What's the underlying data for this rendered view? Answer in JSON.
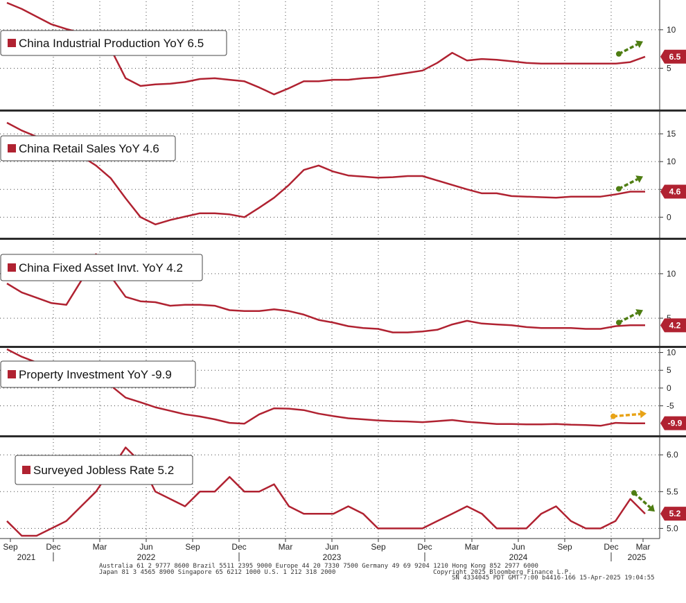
{
  "colors": {
    "series": "#b02231",
    "tag": "#b02231",
    "grid": "#444444",
    "separator": "#2b2b2b",
    "arrow_up": "#4e7d12",
    "arrow_flat": "#e8a317",
    "arrow_down": "#4e7d12"
  },
  "x_axis": {
    "month_ticks": [
      "Sep",
      "Dec",
      "Mar",
      "Jun",
      "Sep",
      "Dec",
      "Mar",
      "Jun",
      "Sep",
      "Dec",
      "Mar",
      "Jun",
      "Sep",
      "Dec",
      "Mar"
    ],
    "year_labels": [
      "2021",
      "2022",
      "2023",
      "2024",
      "2025"
    ]
  },
  "footer": {
    "line1": "Australia 61 2 9777 8600 Brazil 5511 2395 9000 Europe 44 20 7330 7500 Germany 49 69 9204 1210 Hong Kong 852 2977 6000",
    "line2": "Japan 81 3 4565 8900 Singapore 65 6212 1000 U.S. 1 212 318 2000",
    "line3": "Copyright 2025 Bloomberg Finance L.P.",
    "line4": "SN 4334045 PDT GMT-7:00 b4416-166 15-Apr-2025 19:04:55"
  },
  "chart_data": [
    {
      "type": "line",
      "legend": "China Industrial Production YoY 6.5",
      "last_value_label": "6.5",
      "trend": "up",
      "yticks": [
        "5",
        "10"
      ],
      "ylim": [
        0,
        13.5
      ],
      "x": [
        "2021-08",
        "2021-09",
        "2021-10",
        "2021-11",
        "2021-12",
        "2022-01",
        "2022-02",
        "2022-03",
        "2022-04",
        "2022-05",
        "2022-06",
        "2022-07",
        "2022-08",
        "2022-09",
        "2022-10",
        "2022-11",
        "2022-12",
        "2023-01",
        "2023-02",
        "2023-03",
        "2023-04",
        "2023-05",
        "2023-06",
        "2023-07",
        "2023-08",
        "2023-09",
        "2023-10",
        "2023-11",
        "2023-12",
        "2024-01",
        "2024-02",
        "2024-03",
        "2024-04",
        "2024-05",
        "2024-06",
        "2024-07",
        "2024-08",
        "2024-09",
        "2024-10",
        "2024-11",
        "2024-12",
        "2025-01",
        "2025-02",
        "2025-03"
      ],
      "values": [
        13.5,
        12.7,
        11.7,
        10.7,
        10.1,
        9.6,
        8.6,
        7.5,
        3.7,
        2.7,
        2.9,
        3.0,
        3.2,
        3.6,
        3.7,
        3.5,
        3.3,
        2.5,
        1.6,
        2.4,
        3.3,
        3.3,
        3.5,
        3.5,
        3.7,
        3.8,
        4.1,
        4.4,
        4.7,
        5.7,
        7.0,
        6.0,
        6.2,
        6.1,
        5.9,
        5.7,
        5.6,
        5.6,
        5.6,
        5.6,
        5.6,
        5.6,
        5.8,
        6.5
      ]
    },
    {
      "type": "line",
      "legend": "China Retail Sales YoY 4.6",
      "last_value_label": "4.6",
      "trend": "up",
      "yticks": [
        "0",
        "5",
        "10",
        "15"
      ],
      "ylim": [
        -3.2,
        18.5
      ],
      "x": [
        "2021-08",
        "2021-09",
        "2021-10",
        "2021-11",
        "2021-12",
        "2022-01",
        "2022-02",
        "2022-03",
        "2022-04",
        "2022-05",
        "2022-06",
        "2022-07",
        "2022-08",
        "2022-09",
        "2022-10",
        "2022-11",
        "2022-12",
        "2023-01",
        "2023-02",
        "2023-03",
        "2023-04",
        "2023-05",
        "2023-06",
        "2023-07",
        "2023-08",
        "2023-09",
        "2023-10",
        "2023-11",
        "2023-12",
        "2024-01",
        "2024-02",
        "2024-03",
        "2024-04",
        "2024-05",
        "2024-06",
        "2024-07",
        "2024-08",
        "2024-09",
        "2024-10",
        "2024-11",
        "2024-12",
        "2025-01",
        "2025-02",
        "2025-03"
      ],
      "values": [
        17.0,
        15.6,
        14.5,
        13.5,
        12.3,
        11.0,
        9.3,
        7.0,
        3.4,
        0.0,
        -1.3,
        -0.5,
        0.1,
        0.7,
        0.7,
        0.5,
        0.0,
        1.7,
        3.5,
        5.8,
        8.5,
        9.3,
        8.2,
        7.5,
        7.3,
        7.1,
        7.2,
        7.4,
        7.4,
        6.6,
        5.8,
        5.0,
        4.3,
        4.3,
        3.8,
        3.7,
        3.6,
        3.5,
        3.7,
        3.7,
        3.7,
        4.1,
        4.6,
        4.6
      ]
    },
    {
      "type": "line",
      "legend": "China Fixed Asset Invt. YoY 4.2",
      "last_value_label": "4.2",
      "trend": "up",
      "yticks": [
        "5",
        "10"
      ],
      "ylim": [
        2.2,
        13.5
      ],
      "x": [
        "2021-08",
        "2021-09",
        "2021-10",
        "2021-11",
        "2021-12",
        "2022-01",
        "2022-02",
        "2022-03",
        "2022-04",
        "2022-05",
        "2022-06",
        "2022-07",
        "2022-08",
        "2022-09",
        "2022-10",
        "2022-11",
        "2022-12",
        "2023-01",
        "2023-02",
        "2023-03",
        "2023-04",
        "2023-05",
        "2023-06",
        "2023-07",
        "2023-08",
        "2023-09",
        "2023-10",
        "2023-11",
        "2023-12",
        "2024-01",
        "2024-02",
        "2024-03",
        "2024-04",
        "2024-05",
        "2024-06",
        "2024-07",
        "2024-08",
        "2024-09",
        "2024-10",
        "2024-11",
        "2024-12",
        "2025-01",
        "2025-02",
        "2025-03"
      ],
      "values": [
        8.9,
        7.9,
        7.3,
        6.7,
        6.5,
        9.2,
        12.2,
        9.7,
        7.4,
        6.9,
        6.8,
        6.4,
        6.5,
        6.5,
        6.4,
        5.9,
        5.8,
        5.8,
        6.0,
        5.8,
        5.4,
        4.8,
        4.5,
        4.1,
        3.9,
        3.8,
        3.4,
        3.4,
        3.5,
        3.7,
        4.3,
        4.7,
        4.4,
        4.3,
        4.2,
        4.0,
        3.9,
        3.9,
        3.9,
        3.8,
        3.8,
        4.1,
        4.2,
        4.2
      ]
    },
    {
      "type": "line",
      "legend": "Property Investment YoY -9.9",
      "last_value_label": "-9.9",
      "trend": "flat",
      "yticks": [
        "-5",
        "0",
        "5",
        "10"
      ],
      "ylim": [
        -12.5,
        10.5
      ],
      "x": [
        "2021-08",
        "2021-09",
        "2021-10",
        "2021-11",
        "2021-12",
        "2022-01",
        "2022-02",
        "2022-03",
        "2022-04",
        "2022-05",
        "2022-06",
        "2022-07",
        "2022-08",
        "2022-09",
        "2022-10",
        "2022-11",
        "2022-12",
        "2023-01",
        "2023-02",
        "2023-03",
        "2023-04",
        "2023-05",
        "2023-06",
        "2023-07",
        "2023-08",
        "2023-09",
        "2023-10",
        "2023-11",
        "2023-12",
        "2024-01",
        "2024-02",
        "2024-03",
        "2024-04",
        "2024-05",
        "2024-06",
        "2024-07",
        "2024-08",
        "2024-09",
        "2024-10",
        "2024-11",
        "2024-12",
        "2025-01",
        "2025-02",
        "2025-03"
      ],
      "values": [
        10.9,
        8.8,
        7.2,
        6.0,
        4.4,
        3.2,
        3.7,
        0.7,
        -2.7,
        -4.0,
        -5.4,
        -6.4,
        -7.4,
        -8.0,
        -8.8,
        -9.8,
        -10.0,
        -7.4,
        -5.7,
        -5.8,
        -6.2,
        -7.2,
        -7.9,
        -8.5,
        -8.8,
        -9.1,
        -9.3,
        -9.4,
        -9.6,
        -9.3,
        -9.0,
        -9.5,
        -9.8,
        -10.1,
        -10.1,
        -10.2,
        -10.2,
        -10.1,
        -10.3,
        -10.4,
        -10.6,
        -9.8,
        -9.9,
        -9.9
      ]
    },
    {
      "type": "line",
      "legend": "Surveyed Jobless Rate 5.2",
      "last_value_label": "5.2",
      "trend": "down",
      "yticks": [
        "5.0",
        "5.5",
        "6.0"
      ],
      "ylim": [
        4.9,
        6.2
      ],
      "x": [
        "2021-08",
        "2021-09",
        "2021-10",
        "2021-11",
        "2021-12",
        "2022-01",
        "2022-02",
        "2022-03",
        "2022-04",
        "2022-05",
        "2022-06",
        "2022-07",
        "2022-08",
        "2022-09",
        "2022-10",
        "2022-11",
        "2022-12",
        "2023-01",
        "2023-02",
        "2023-03",
        "2023-04",
        "2023-05",
        "2023-06",
        "2023-07",
        "2023-08",
        "2023-09",
        "2023-10",
        "2023-11",
        "2023-12",
        "2024-01",
        "2024-02",
        "2024-03",
        "2024-04",
        "2024-05",
        "2024-06",
        "2024-07",
        "2024-08",
        "2024-09",
        "2024-10",
        "2024-11",
        "2024-12",
        "2025-01",
        "2025-02",
        "2025-03"
      ],
      "values": [
        5.1,
        4.9,
        4.9,
        5.0,
        5.1,
        5.3,
        5.5,
        5.8,
        6.1,
        5.9,
        5.5,
        5.4,
        5.3,
        5.5,
        5.5,
        5.7,
        5.5,
        5.5,
        5.6,
        5.3,
        5.2,
        5.2,
        5.2,
        5.3,
        5.2,
        5.0,
        5.0,
        5.0,
        5.0,
        5.1,
        5.2,
        5.3,
        5.2,
        5.0,
        5.0,
        5.0,
        5.2,
        5.3,
        5.1,
        5.0,
        5.0,
        5.1,
        5.4,
        5.2
      ]
    }
  ]
}
